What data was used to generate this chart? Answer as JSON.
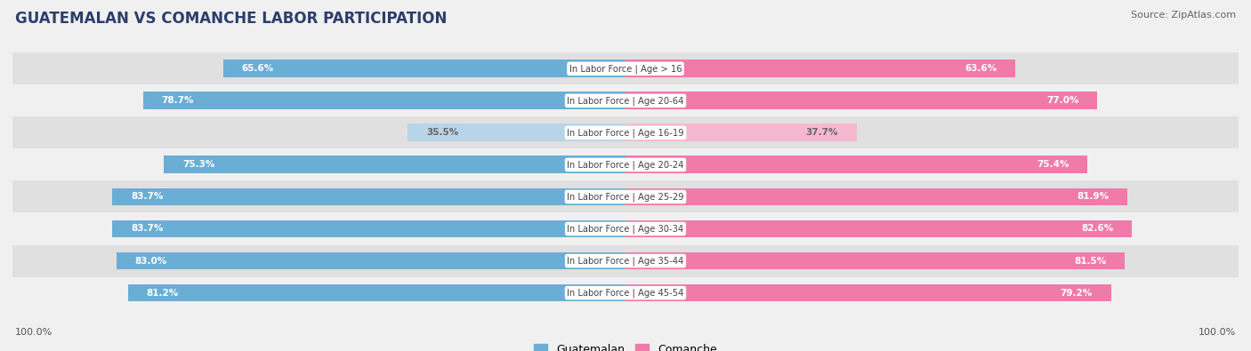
{
  "title": "GUATEMALAN VS COMANCHE LABOR PARTICIPATION",
  "source": "Source: ZipAtlas.com",
  "categories": [
    "In Labor Force | Age > 16",
    "In Labor Force | Age 20-64",
    "In Labor Force | Age 16-19",
    "In Labor Force | Age 20-24",
    "In Labor Force | Age 25-29",
    "In Labor Force | Age 30-34",
    "In Labor Force | Age 35-44",
    "In Labor Force | Age 45-54"
  ],
  "guatemalan_values": [
    65.6,
    78.7,
    35.5,
    75.3,
    83.7,
    83.7,
    83.0,
    81.2
  ],
  "comanche_values": [
    63.6,
    77.0,
    37.7,
    75.4,
    81.9,
    82.6,
    81.5,
    79.2
  ],
  "guatemalan_color_dark": "#6aaed6",
  "guatemalan_color_light": "#b8d4e8",
  "comanche_color_dark": "#f07aaa",
  "comanche_color_light": "#f5b8cf",
  "label_color_white": "#ffffff",
  "label_color_dark": "#666666",
  "center_label_color": "#444444",
  "bg_color": "#f0f0f0",
  "row_bg_dark": "#e0e0e0",
  "row_bg_light": "#f0f0f0",
  "legend_guatemalan": "Guatemalan",
  "legend_comanche": "Comanche",
  "axis_label": "100.0%",
  "title_color": "#2c3e6b",
  "source_color": "#666666"
}
